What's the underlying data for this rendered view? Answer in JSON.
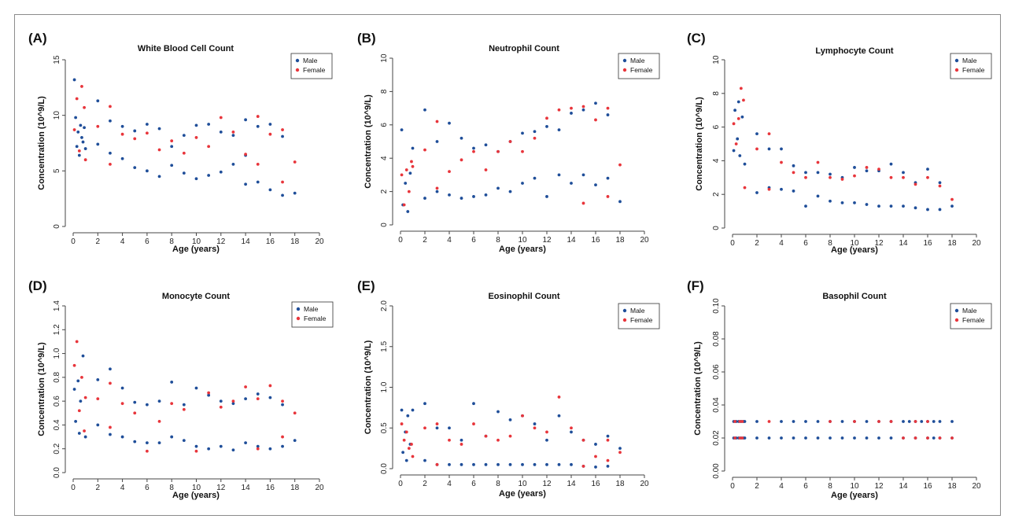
{
  "figure": {
    "colors": {
      "male": "#1f4e99",
      "female": "#e8353b"
    }
  },
  "chart_data": [
    {
      "type": "scatter",
      "panel_label": "(A)",
      "title": "White Blood Cell Count",
      "xlabel": "Age (years)",
      "ylabel": "Concentration (10^9/L)",
      "xlim": [
        0,
        20
      ],
      "ylim": [
        0,
        15
      ],
      "x_ticks": [
        0,
        2,
        4,
        6,
        8,
        10,
        12,
        14,
        16,
        18,
        20
      ],
      "y_ticks": [
        0,
        5,
        10,
        15
      ],
      "legend": [
        "Male",
        "Female"
      ],
      "legend_position": "top-right",
      "series": [
        {
          "name": "Male",
          "x": [
            0.1,
            0.2,
            0.3,
            0.4,
            0.5,
            0.6,
            0.7,
            0.8,
            0.9,
            1,
            2,
            2,
            3,
            3,
            4,
            4,
            5,
            5,
            6,
            6,
            7,
            7,
            8,
            8,
            9,
            9,
            10,
            10,
            11,
            11,
            12,
            12,
            13,
            13,
            14,
            14,
            14,
            15,
            15,
            16,
            16,
            17,
            17,
            18
          ],
          "y": [
            13.2,
            9.8,
            7.2,
            8.5,
            6.4,
            9.1,
            8.0,
            7.6,
            8.9,
            7.0,
            11.3,
            7.4,
            9.5,
            6.6,
            9.0,
            6.1,
            8.6,
            5.3,
            9.2,
            5.0,
            8.8,
            4.5,
            7.2,
            5.5,
            8.2,
            4.8,
            9.1,
            4.3,
            9.2,
            4.6,
            8.5,
            4.9,
            8.2,
            5.6,
            9.6,
            3.8,
            6.4,
            9.0,
            4.0,
            9.2,
            3.3,
            8.1,
            2.8,
            3.0
          ]
        },
        {
          "name": "Female",
          "x": [
            0.1,
            0.3,
            0.5,
            0.7,
            0.9,
            1,
            2,
            3,
            3,
            4,
            5,
            6,
            7,
            8,
            9,
            10,
            11,
            12,
            13,
            14,
            15,
            15,
            16,
            17,
            17,
            18
          ],
          "y": [
            8.7,
            11.5,
            6.8,
            12.6,
            10.7,
            6.0,
            9.0,
            10.8,
            5.6,
            8.3,
            7.9,
            8.4,
            6.9,
            7.7,
            6.6,
            8.0,
            7.2,
            9.8,
            8.5,
            6.5,
            9.9,
            5.6,
            8.3,
            8.7,
            4.0,
            5.8
          ]
        }
      ]
    },
    {
      "type": "scatter",
      "panel_label": "(B)",
      "title": "Neutrophil Count",
      "xlabel": "Age (years)",
      "ylabel": "Concentration (10^9/L)",
      "xlim": [
        0,
        20
      ],
      "ylim": [
        0,
        10
      ],
      "x_ticks": [
        0,
        2,
        4,
        6,
        8,
        10,
        12,
        14,
        16,
        18,
        20
      ],
      "y_ticks": [
        0,
        2,
        4,
        6,
        8,
        10
      ],
      "legend": [
        "Male",
        "Female"
      ],
      "legend_position": "top-right",
      "series": [
        {
          "name": "Male",
          "x": [
            0.1,
            0.2,
            0.4,
            0.6,
            0.8,
            1,
            2,
            2,
            3,
            3,
            4,
            4,
            5,
            5,
            6,
            6,
            7,
            7,
            8,
            8,
            9,
            9,
            10,
            10,
            11,
            11,
            12,
            12,
            13,
            13,
            14,
            14,
            15,
            15,
            16,
            16,
            17,
            17,
            18
          ],
          "y": [
            5.7,
            1.2,
            2.5,
            0.8,
            3.1,
            4.6,
            6.9,
            1.6,
            5.0,
            2.0,
            6.1,
            1.8,
            5.2,
            1.6,
            4.6,
            1.7,
            4.8,
            1.8,
            4.4,
            2.2,
            5.0,
            2.0,
            5.5,
            2.5,
            5.6,
            2.8,
            5.9,
            1.7,
            5.7,
            3.0,
            6.7,
            2.5,
            6.9,
            3.0,
            7.3,
            2.4,
            6.6,
            2.8,
            1.4
          ]
        },
        {
          "name": "Female",
          "x": [
            0.1,
            0.3,
            0.5,
            0.7,
            0.9,
            1,
            2,
            3,
            3,
            4,
            5,
            6,
            7,
            8,
            9,
            10,
            11,
            12,
            13,
            14,
            15,
            15,
            16,
            17,
            17,
            18
          ],
          "y": [
            3.0,
            1.2,
            3.3,
            2.0,
            3.8,
            3.5,
            4.5,
            6.2,
            2.2,
            3.2,
            3.9,
            4.4,
            3.3,
            4.4,
            5.0,
            4.4,
            5.2,
            6.4,
            6.9,
            7.0,
            7.1,
            1.3,
            6.3,
            7.0,
            1.7,
            3.6
          ]
        }
      ]
    },
    {
      "type": "scatter",
      "panel_label": "(C)",
      "title": "Lymphocyte Count",
      "xlabel": "Age (years)",
      "ylabel": "Concentration (10^9/L)",
      "xlim": [
        0,
        20
      ],
      "ylim": [
        0,
        10
      ],
      "x_ticks": [
        0,
        2,
        4,
        6,
        8,
        10,
        12,
        14,
        16,
        18,
        20
      ],
      "y_ticks": [
        0,
        2,
        4,
        6,
        8,
        10
      ],
      "legend": [
        "Male",
        "Female"
      ],
      "legend_position": "top-right",
      "series": [
        {
          "name": "Male",
          "x": [
            0.1,
            0.2,
            0.4,
            0.5,
            0.6,
            0.8,
            1,
            2,
            2,
            3,
            3,
            4,
            4,
            5,
            5,
            6,
            6,
            7,
            7,
            8,
            8,
            9,
            9,
            10,
            10,
            11,
            11,
            12,
            12,
            13,
            13,
            14,
            14,
            15,
            15,
            16,
            16,
            17,
            17,
            18
          ],
          "y": [
            4.6,
            7.0,
            5.3,
            7.5,
            4.3,
            6.6,
            3.8,
            5.6,
            2.1,
            4.7,
            2.4,
            4.7,
            2.3,
            3.7,
            2.2,
            3.3,
            1.3,
            3.3,
            1.9,
            3.2,
            1.6,
            3.0,
            1.5,
            3.6,
            1.5,
            3.4,
            1.4,
            3.4,
            1.3,
            3.8,
            1.3,
            3.3,
            1.3,
            2.7,
            1.2,
            3.5,
            1.1,
            2.7,
            1.1,
            1.3
          ]
        },
        {
          "name": "Female",
          "x": [
            0.1,
            0.3,
            0.5,
            0.7,
            0.9,
            1,
            2,
            3,
            3,
            4,
            5,
            6,
            7,
            8,
            9,
            10,
            11,
            12,
            13,
            14,
            15,
            16,
            17,
            18
          ],
          "y": [
            6.2,
            5.0,
            6.5,
            8.3,
            7.6,
            2.4,
            4.7,
            5.6,
            2.3,
            3.9,
            3.3,
            3.0,
            3.9,
            3.0,
            2.9,
            3.1,
            3.6,
            3.5,
            3.0,
            3.0,
            2.6,
            3.0,
            2.5,
            1.7
          ]
        }
      ]
    },
    {
      "type": "scatter",
      "panel_label": "(D)",
      "title": "Monocyte Count",
      "xlabel": "Age (years)",
      "ylabel": "Concentration (10^9/L)",
      "xlim": [
        0,
        20
      ],
      "ylim": [
        0,
        1.4
      ],
      "x_ticks": [
        0,
        2,
        4,
        6,
        8,
        10,
        12,
        14,
        16,
        18,
        20
      ],
      "y_ticks": [
        0.0,
        0.2,
        0.4,
        0.6,
        0.8,
        1.0,
        1.2,
        1.4
      ],
      "legend": [
        "Male",
        "Female"
      ],
      "legend_position": "top-right",
      "series": [
        {
          "name": "Male",
          "x": [
            0.1,
            0.2,
            0.4,
            0.5,
            0.6,
            0.8,
            1,
            2,
            2,
            3,
            3,
            4,
            4,
            5,
            5,
            6,
            6,
            7,
            7,
            8,
            8,
            9,
            9,
            10,
            10,
            11,
            11,
            12,
            12,
            13,
            13,
            14,
            14,
            15,
            15,
            16,
            16,
            17,
            17,
            18
          ],
          "y": [
            0.7,
            0.43,
            0.77,
            0.33,
            0.6,
            0.98,
            0.3,
            0.78,
            0.4,
            0.87,
            0.32,
            0.71,
            0.3,
            0.59,
            0.26,
            0.57,
            0.25,
            0.6,
            0.25,
            0.76,
            0.3,
            0.57,
            0.27,
            0.71,
            0.22,
            0.65,
            0.2,
            0.6,
            0.22,
            0.58,
            0.19,
            0.62,
            0.25,
            0.66,
            0.22,
            0.63,
            0.2,
            0.57,
            0.22,
            0.27
          ]
        },
        {
          "name": "Female",
          "x": [
            0.1,
            0.3,
            0.5,
            0.7,
            0.9,
            1,
            2,
            3,
            3,
            4,
            5,
            6,
            7,
            8,
            9,
            10,
            11,
            12,
            13,
            14,
            15,
            15,
            16,
            17,
            17,
            18
          ],
          "y": [
            0.9,
            1.1,
            0.52,
            0.8,
            0.35,
            0.63,
            0.62,
            0.75,
            0.38,
            0.58,
            0.5,
            0.18,
            0.43,
            0.58,
            0.53,
            0.18,
            0.67,
            0.55,
            0.6,
            0.72,
            0.62,
            0.2,
            0.73,
            0.6,
            0.3,
            0.5
          ]
        }
      ]
    },
    {
      "type": "scatter",
      "panel_label": "(E)",
      "title": "Eosinophil Count",
      "xlabel": "Age (years)",
      "ylabel": "Concentration (10^9/L)",
      "xlim": [
        0,
        20
      ],
      "ylim": [
        0,
        2.0
      ],
      "x_ticks": [
        0,
        2,
        4,
        6,
        8,
        10,
        12,
        14,
        16,
        18,
        20
      ],
      "y_ticks": [
        0.0,
        0.5,
        1.0,
        1.5,
        2.0
      ],
      "legend": [
        "Male",
        "Female"
      ],
      "legend_position": "top-right",
      "series": [
        {
          "name": "Male",
          "x": [
            0.1,
            0.2,
            0.4,
            0.5,
            0.6,
            0.8,
            1,
            2,
            2,
            3,
            3,
            4,
            4,
            5,
            5,
            6,
            6,
            7,
            7,
            8,
            8,
            9,
            9,
            10,
            10,
            11,
            11,
            12,
            12,
            13,
            13,
            14,
            14,
            15,
            15,
            16,
            16,
            17,
            17,
            18
          ],
          "y": [
            0.72,
            0.2,
            0.45,
            0.1,
            0.65,
            0.3,
            0.72,
            0.8,
            0.1,
            0.5,
            0.05,
            0.5,
            0.05,
            0.35,
            0.05,
            0.8,
            0.05,
            0.4,
            0.05,
            0.7,
            0.05,
            0.6,
            0.05,
            0.65,
            0.05,
            0.55,
            0.05,
            0.35,
            0.05,
            0.65,
            0.05,
            0.45,
            0.05,
            0.35,
            0.03,
            0.3,
            0.02,
            0.4,
            0.03,
            0.25
          ]
        },
        {
          "name": "Female",
          "x": [
            0.1,
            0.3,
            0.5,
            0.7,
            0.9,
            1,
            2,
            3,
            3,
            4,
            5,
            6,
            7,
            8,
            9,
            10,
            11,
            12,
            13,
            14,
            15,
            15,
            16,
            17,
            17,
            18
          ],
          "y": [
            0.55,
            0.35,
            0.45,
            0.25,
            0.3,
            0.15,
            0.5,
            0.55,
            0.05,
            0.35,
            0.3,
            0.55,
            0.4,
            0.35,
            0.4,
            0.65,
            0.5,
            0.45,
            0.88,
            0.5,
            0.35,
            0.03,
            0.15,
            0.35,
            0.1,
            0.2
          ]
        }
      ]
    },
    {
      "type": "scatter",
      "panel_label": "(F)",
      "title": "Basophil Count",
      "xlabel": "Age (years)",
      "ylabel": "Concentration (10^9/L)",
      "xlim": [
        0,
        20
      ],
      "ylim": [
        0,
        0.1
      ],
      "x_ticks": [
        0,
        2,
        4,
        6,
        8,
        10,
        12,
        14,
        16,
        18,
        20
      ],
      "y_ticks": [
        0.0,
        0.02,
        0.04,
        0.06,
        0.08,
        0.1
      ],
      "legend": [
        "Male",
        "Female"
      ],
      "legend_position": "top-right",
      "series": [
        {
          "name": "Male",
          "x": [
            0.1,
            0.3,
            0.5,
            0.7,
            0.9,
            1,
            2,
            4,
            5,
            6,
            7,
            8,
            9,
            10,
            11,
            12,
            13,
            14,
            14.5,
            15,
            15.5,
            16,
            16.5,
            17,
            18,
            0.1,
            0.3,
            0.5,
            0.7,
            0.9,
            1,
            2,
            3,
            4,
            5,
            6,
            7,
            8,
            9,
            10,
            11,
            12,
            13,
            14,
            15,
            16,
            16.5,
            17,
            18
          ],
          "y": [
            0.03,
            0.03,
            0.03,
            0.03,
            0.03,
            0.03,
            0.03,
            0.03,
            0.03,
            0.03,
            0.03,
            0.03,
            0.03,
            0.03,
            0.03,
            0.03,
            0.03,
            0.03,
            0.03,
            0.03,
            0.03,
            0.03,
            0.03,
            0.03,
            0.03,
            0.02,
            0.02,
            0.02,
            0.02,
            0.02,
            0.02,
            0.02,
            0.02,
            0.02,
            0.02,
            0.02,
            0.02,
            0.02,
            0.02,
            0.02,
            0.02,
            0.02,
            0.02,
            0.02,
            0.02,
            0.02,
            0.02,
            0.02,
            0.02
          ]
        },
        {
          "name": "Female",
          "x": [
            0.2,
            0.6,
            0.8,
            3,
            8,
            10,
            12,
            13,
            15,
            16,
            0.2,
            0.6,
            0.8,
            14,
            15,
            16,
            17,
            18
          ],
          "y": [
            0.03,
            0.03,
            0.03,
            0.03,
            0.03,
            0.03,
            0.03,
            0.03,
            0.03,
            0.03,
            0.02,
            0.02,
            0.02,
            0.02,
            0.02,
            0.02,
            0.02,
            0.02
          ]
        }
      ]
    }
  ]
}
